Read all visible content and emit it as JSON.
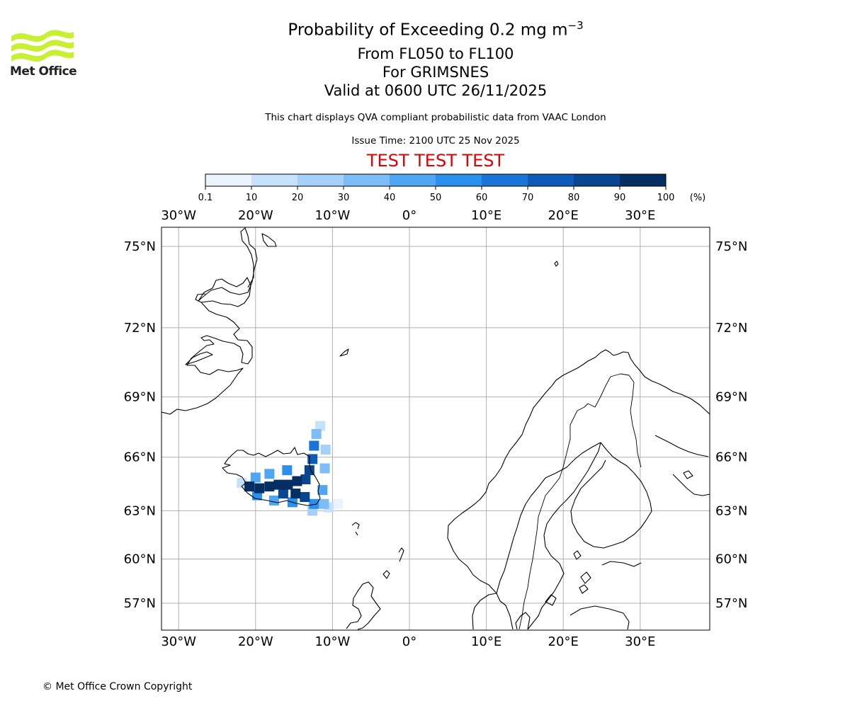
{
  "branding": {
    "logo_text": "Met Office"
  },
  "header": {
    "title_main": "Probability of Exceeding 0.2 mg m",
    "title_superscript": "−3",
    "flight_levels": "From FL050 to FL100",
    "location": "For GRIMSNES",
    "valid_time": "Valid at 0600 UTC 26/11/2025",
    "subtitle": "This chart displays QVA compliant probabilistic data from VAAC London",
    "issue_time": "Issue Time: 2100 UTC 25 Nov 2025",
    "test_banner": "TEST TEST TEST"
  },
  "colors": {
    "test_banner": "#e00000",
    "coastline": "#000000",
    "grid": "#b0b0b0",
    "logo": "#c8f032"
  },
  "colorbar": {
    "unit_label": "(%)",
    "ticks": [
      "0.1",
      "10",
      "20",
      "30",
      "40",
      "50",
      "60",
      "70",
      "80",
      "90",
      "100"
    ],
    "bins": [
      "#eaf4fe",
      "#c6e1fb",
      "#a5d0f8",
      "#7dbcf5",
      "#4fa6f2",
      "#2b8fec",
      "#1b75d6",
      "#0d5bb6",
      "#08468f",
      "#052e63"
    ]
  },
  "chart_data": {
    "type": "heatmap",
    "title": "Probability of Exceeding 0.2 mg m−3",
    "projection": "Mercator",
    "extent": {
      "lon": [
        -32.3,
        39
      ],
      "lat": [
        55.5,
        76
      ]
    },
    "x_ticks": [
      "30°W",
      "20°W",
      "10°W",
      "0°",
      "10°E",
      "20°E",
      "30°E"
    ],
    "x_tick_values": [
      -30,
      -20,
      -10,
      0,
      10,
      20,
      30
    ],
    "y_ticks": [
      "75°N",
      "72°N",
      "69°N",
      "66°N",
      "63°N",
      "60°N",
      "57°N"
    ],
    "y_tick_values": [
      75,
      72,
      69,
      66,
      63,
      60,
      57
    ],
    "grid": true,
    "source_location": "GRIMSNES",
    "plume_cells": [
      {
        "lon": -20.8,
        "lat": 64.4,
        "p": 95
      },
      {
        "lon": -19.5,
        "lat": 64.3,
        "p": 92
      },
      {
        "lon": -18.2,
        "lat": 64.4,
        "p": 90
      },
      {
        "lon": -17.0,
        "lat": 64.5,
        "p": 92
      },
      {
        "lon": -15.8,
        "lat": 64.5,
        "p": 92
      },
      {
        "lon": -14.6,
        "lat": 64.7,
        "p": 92
      },
      {
        "lon": -13.5,
        "lat": 64.8,
        "p": 88
      },
      {
        "lon": -16.4,
        "lat": 64.0,
        "p": 85
      },
      {
        "lon": -14.8,
        "lat": 64.0,
        "p": 90
      },
      {
        "lon": -13.6,
        "lat": 63.8,
        "p": 88
      },
      {
        "lon": -13.0,
        "lat": 65.3,
        "p": 82
      },
      {
        "lon": -12.6,
        "lat": 65.9,
        "p": 78
      },
      {
        "lon": -12.4,
        "lat": 66.6,
        "p": 60
      },
      {
        "lon": -12.1,
        "lat": 67.2,
        "p": 35
      },
      {
        "lon": -11.6,
        "lat": 67.6,
        "p": 12
      },
      {
        "lon": -20.0,
        "lat": 64.9,
        "p": 40
      },
      {
        "lon": -18.2,
        "lat": 65.1,
        "p": 45
      },
      {
        "lon": -15.9,
        "lat": 65.3,
        "p": 50
      },
      {
        "lon": -19.8,
        "lat": 63.9,
        "p": 55
      },
      {
        "lon": -17.6,
        "lat": 63.6,
        "p": 40
      },
      {
        "lon": -15.2,
        "lat": 63.5,
        "p": 55
      },
      {
        "lon": -12.4,
        "lat": 63.4,
        "p": 55
      },
      {
        "lon": -11.1,
        "lat": 63.4,
        "p": 30
      },
      {
        "lon": -11.3,
        "lat": 64.2,
        "p": 40
      },
      {
        "lon": -11.0,
        "lat": 65.4,
        "p": 35
      },
      {
        "lon": -10.9,
        "lat": 66.4,
        "p": 25
      },
      {
        "lon": -12.6,
        "lat": 63.0,
        "p": 25
      },
      {
        "lon": -10.5,
        "lat": 63.2,
        "p": 15
      },
      {
        "lon": -9.3,
        "lat": 63.4,
        "p": 8
      },
      {
        "lon": -21.8,
        "lat": 64.6,
        "p": 10
      }
    ]
  },
  "footer": {
    "copyright": "© Met Office Crown Copyright"
  }
}
